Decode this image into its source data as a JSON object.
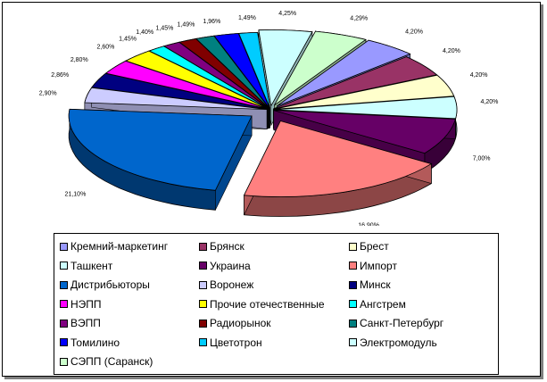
{
  "chart_data": {
    "type": "pie",
    "title": "",
    "slices": [
      {
        "name": "Кремний-маркетинг",
        "value": 4.2,
        "label": "4,20%",
        "color": "#9999ff"
      },
      {
        "name": "Брянск",
        "value": 4.2,
        "label": "4,20%",
        "color": "#993366"
      },
      {
        "name": "Брест",
        "value": 4.2,
        "label": "4,20%",
        "color": "#ffffcc"
      },
      {
        "name": "Ташкент",
        "value": 4.2,
        "label": "4,20%",
        "color": "#ccffff"
      },
      {
        "name": "Украина",
        "value": 7.0,
        "label": "7,00%",
        "color": "#660066"
      },
      {
        "name": "Импорт",
        "value": 16.9,
        "label": "16,90%",
        "color": "#ff8080"
      },
      {
        "name": "Дистрибьюторы",
        "value": 21.1,
        "label": "21,10%",
        "color": "#0066cc"
      },
      {
        "name": "Воронеж",
        "value": 2.9,
        "label": "2,90%",
        "color": "#ccccff"
      },
      {
        "name": "Минск",
        "value": 2.86,
        "label": "2,86%",
        "color": "#000080"
      },
      {
        "name": "НЭПП",
        "value": 2.8,
        "label": "2,80%",
        "color": "#ff00ff"
      },
      {
        "name": "Прочие отечественные",
        "value": 2.6,
        "label": "2,60%",
        "color": "#ffff00"
      },
      {
        "name": "Ангстрем",
        "value": 1.45,
        "label": "1,45%",
        "color": "#00ffff"
      },
      {
        "name": "ВЭПП",
        "value": 1.4,
        "label": "1,40%",
        "color": "#800080"
      },
      {
        "name": "Радиорынок",
        "value": 1.45,
        "label": "1,45%",
        "color": "#800000"
      },
      {
        "name": "Санкт-Петербург",
        "value": 1.49,
        "label": "1,49%",
        "color": "#008080"
      },
      {
        "name": "Томилино",
        "value": 1.96,
        "label": "1,96%",
        "color": "#0000ff"
      },
      {
        "name": "Цветотрон",
        "value": 1.49,
        "label": "1,49%",
        "color": "#00ccff"
      },
      {
        "name": "Электромодуль",
        "value": 4.25,
        "label": "4,25%",
        "color": "#ccffff"
      },
      {
        "name": "СЭПП (Саранск)",
        "value": 4.29,
        "label": "4,29%",
        "color": "#ccffcc"
      }
    ],
    "legend_position": "bottom"
  }
}
